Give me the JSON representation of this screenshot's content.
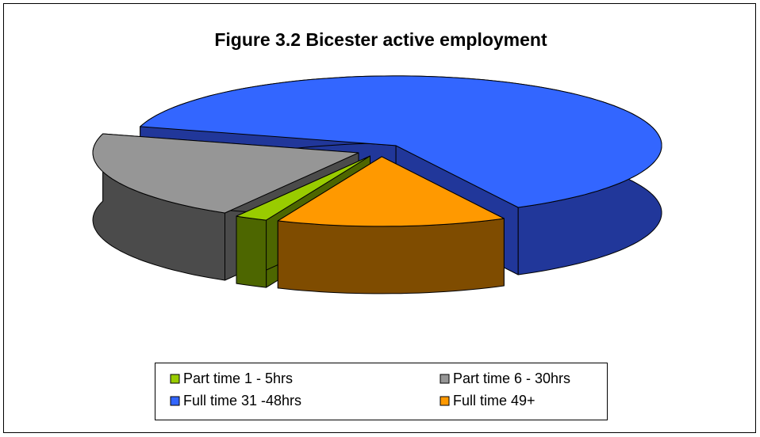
{
  "chart_data": {
    "type": "pie3d",
    "title": "Figure 3.2 Bicester active employment",
    "categories": [
      "Part time 1 - 5hrs",
      "Part time 6 - 30hrs",
      "Full time 31 -48hrs",
      "Full time 49+"
    ],
    "values": [
      2,
      21,
      63,
      14
    ],
    "colors": [
      "#99cc00",
      "#969696",
      "#3366ff",
      "#ff9900"
    ],
    "side_colors": [
      "#4d6600",
      "#4b4b4b",
      "#21379a",
      "#7f4c00"
    ]
  }
}
